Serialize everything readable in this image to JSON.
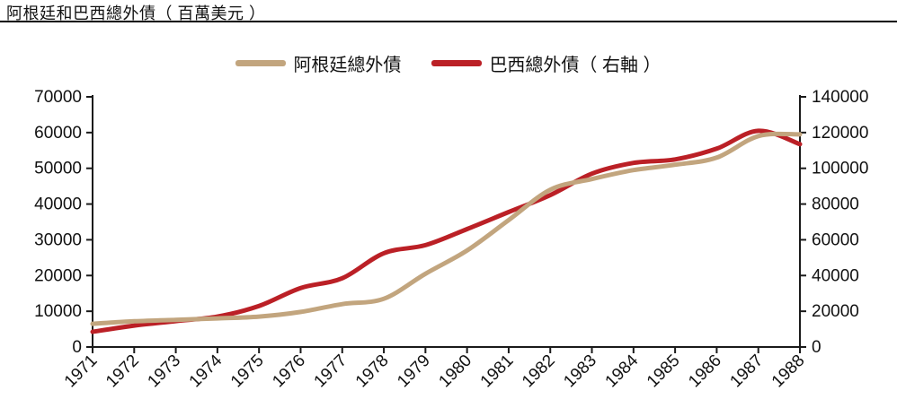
{
  "title": "阿根廷和巴西總外債（ 百萬美元  ）",
  "colors": {
    "argentina_line": "#C2A57E",
    "brazil_line": "#BB2026",
    "axis": "#1a1a1a",
    "background": "#ffffff"
  },
  "chart_data": {
    "type": "line",
    "title": "阿根廷和巴西總外債（ 百萬美元  ）",
    "x": [
      "1971",
      "1972",
      "1973",
      "1974",
      "1975",
      "1976",
      "1977",
      "1978",
      "1979",
      "1980",
      "1981",
      "1982",
      "1983",
      "1984",
      "1985",
      "1986",
      "1987",
      "1988"
    ],
    "series": [
      {
        "name": "阿根廷總外債",
        "axis": "left",
        "color": "#C2A57E",
        "values": [
          6500,
          7200,
          7600,
          8000,
          8500,
          9800,
          12000,
          13500,
          20500,
          27000,
          35500,
          44000,
          47000,
          49500,
          51000,
          53000,
          59000,
          59500
        ]
      },
      {
        "name": "巴西總外債（ 右軸 ）",
        "axis": "right",
        "color": "#BB2026",
        "values": [
          8500,
          12000,
          14500,
          17000,
          23000,
          33000,
          38500,
          52500,
          57000,
          66000,
          75500,
          85000,
          97000,
          103000,
          105000,
          111000,
          121000,
          113500
        ]
      }
    ],
    "left_axis": {
      "min": 0,
      "max": 70000,
      "step": 10000,
      "tick_labels": [
        "0",
        "10000",
        "20000",
        "30000",
        "40000",
        "50000",
        "60000",
        "70000"
      ]
    },
    "right_axis": {
      "min": 0,
      "max": 140000,
      "step": 20000,
      "tick_labels": [
        "0",
        "20000",
        "40000",
        "60000",
        "80000",
        "100000",
        "120000",
        "140000"
      ]
    },
    "xlabel": "",
    "ylabel": "",
    "legend_position": "top-center",
    "grid": false,
    "x_tick_rotation_deg": 45
  }
}
